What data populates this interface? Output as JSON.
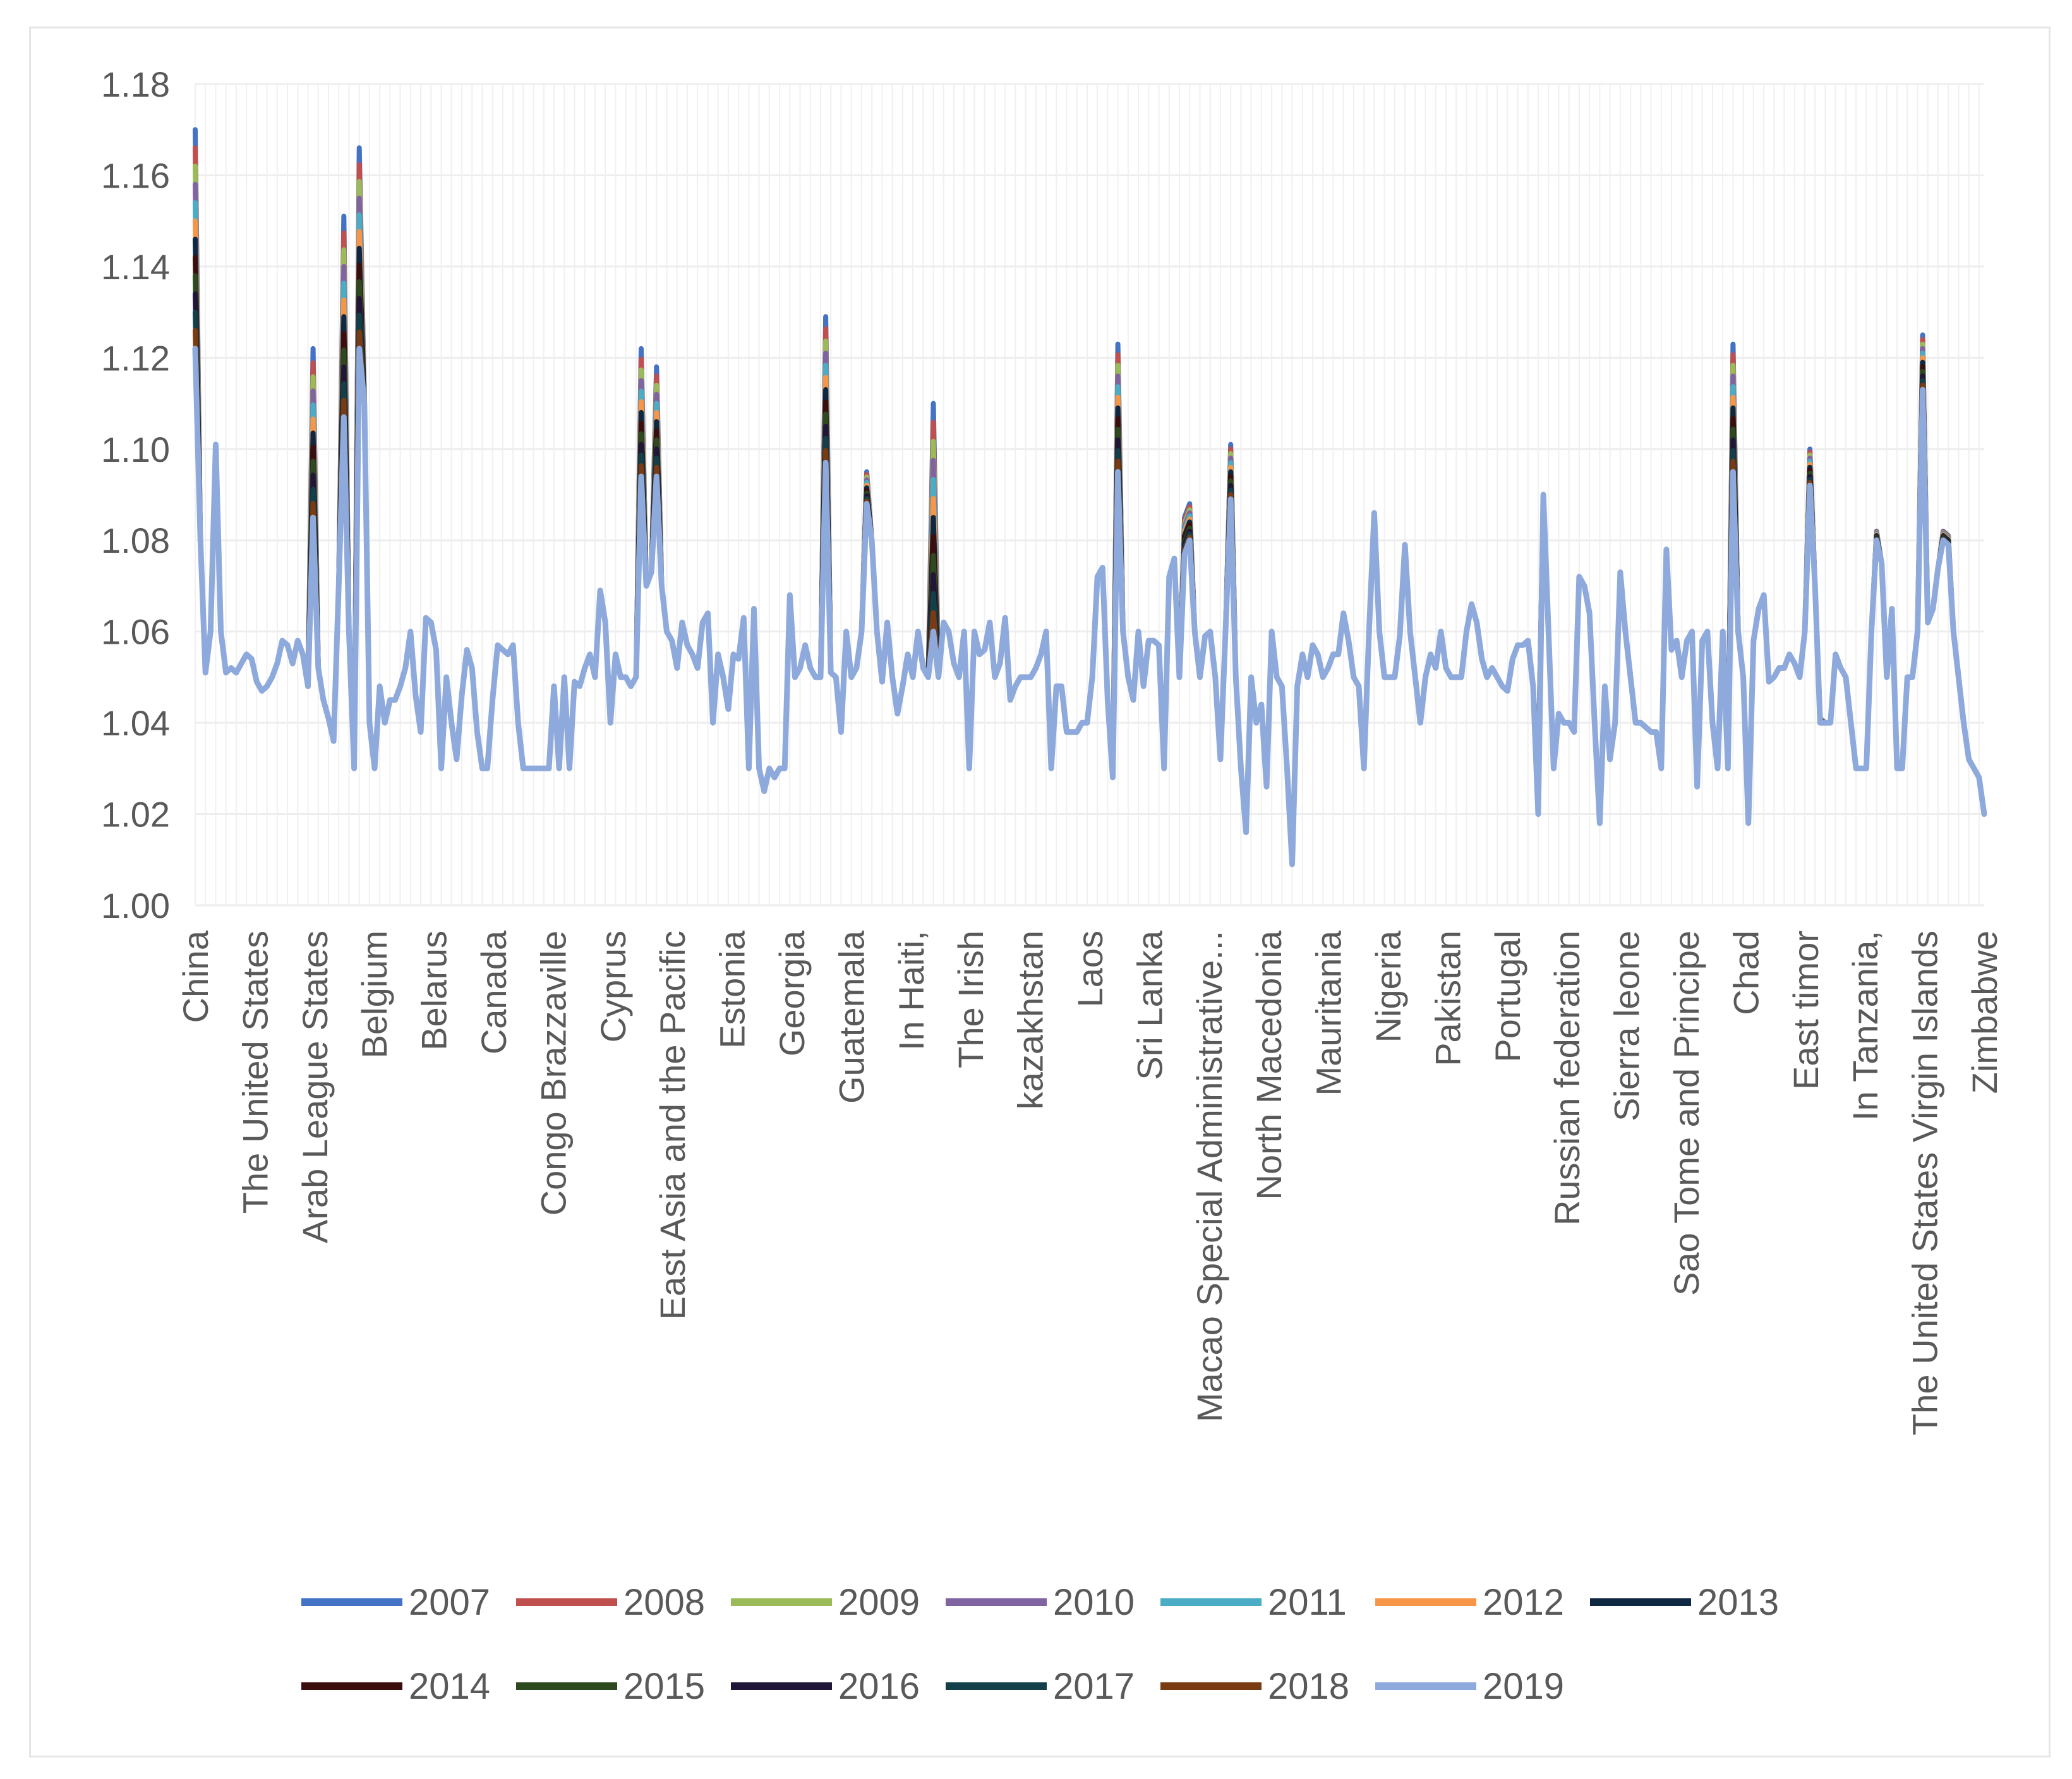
{
  "chart_data": {
    "type": "line",
    "title": "",
    "xlabel": "",
    "ylabel": "",
    "ylim": [
      1.0,
      1.18
    ],
    "yticks": [
      "1.00",
      "1.02",
      "1.04",
      "1.06",
      "1.08",
      "1.10",
      "1.12",
      "1.14",
      "1.16",
      "1.18"
    ],
    "grid": true,
    "legend_position": "bottom",
    "categories": [
      "China",
      "The United States",
      "Arab League States",
      "Belgium",
      "Belarus",
      "Canada",
      "Congo Brazzaville",
      "Cyprus",
      "East Asia and the Pacific",
      "Estonia",
      "Georgia",
      "Guatemala",
      "In Haiti,",
      "The Irish",
      "kazakhstan",
      "Laos",
      "Sri Lanka",
      "Macao Special Administrative...",
      "North Macedonia",
      "Mauritania",
      "Nigeria",
      "Pakistan",
      "Portugal",
      "Russian federation",
      "Sierra leone",
      "Sao Tome and Principe",
      "Chad",
      "East timor",
      "In Tanzania,",
      "The United States Virgin Islands",
      "Zimbabwe"
    ],
    "base_profile": [
      [
        0,
        1.122
      ],
      [
        1.5,
        1.06
      ],
      [
        2,
        1.051
      ],
      [
        3,
        1.06
      ],
      [
        4,
        1.101
      ],
      [
        5,
        1.06
      ],
      [
        6,
        1.051
      ],
      [
        7,
        1.052
      ],
      [
        8,
        1.051
      ],
      [
        9,
        1.053
      ],
      [
        10,
        1.055
      ],
      [
        11,
        1.054
      ],
      [
        12,
        1.049
      ],
      [
        13,
        1.047
      ],
      [
        14,
        1.048
      ],
      [
        15,
        1.05
      ],
      [
        16,
        1.053
      ],
      [
        17,
        1.058
      ],
      [
        18,
        1.057
      ],
      [
        19,
        1.053
      ],
      [
        20,
        1.058
      ],
      [
        21,
        1.055
      ],
      [
        22,
        1.048
      ],
      [
        23,
        1.085
      ],
      [
        24,
        1.052
      ],
      [
        25,
        1.045
      ],
      [
        26,
        1.041
      ],
      [
        27,
        1.036
      ],
      [
        28,
        1.07
      ],
      [
        29,
        1.107
      ],
      [
        30,
        1.06
      ],
      [
        31,
        1.03
      ],
      [
        32,
        1.122
      ],
      [
        33,
        1.11
      ],
      [
        34,
        1.04
      ],
      [
        35,
        1.03
      ],
      [
        36,
        1.048
      ],
      [
        37,
        1.04
      ],
      [
        38,
        1.045
      ],
      [
        39,
        1.045
      ],
      [
        40,
        1.048
      ],
      [
        41,
        1.052
      ],
      [
        42,
        1.06
      ],
      [
        43,
        1.046
      ],
      [
        44,
        1.038
      ],
      [
        45,
        1.063
      ],
      [
        46,
        1.062
      ],
      [
        47,
        1.056
      ],
      [
        48,
        1.03
      ],
      [
        49,
        1.05
      ],
      [
        50,
        1.04
      ],
      [
        51,
        1.032
      ],
      [
        52,
        1.046
      ],
      [
        53,
        1.056
      ],
      [
        54,
        1.052
      ],
      [
        55,
        1.038
      ],
      [
        56,
        1.03
      ],
      [
        57,
        1.03
      ],
      [
        58,
        1.045
      ],
      [
        59,
        1.057
      ],
      [
        60,
        1.056
      ],
      [
        61,
        1.055
      ],
      [
        62,
        1.057
      ],
      [
        63,
        1.04
      ],
      [
        64,
        1.03
      ],
      [
        65,
        1.03
      ],
      [
        66,
        1.03
      ],
      [
        67,
        1.03
      ],
      [
        68,
        1.03
      ],
      [
        69,
        1.03
      ],
      [
        70,
        1.048
      ],
      [
        71,
        1.03
      ],
      [
        72,
        1.05
      ],
      [
        73,
        1.03
      ],
      [
        74,
        1.049
      ],
      [
        75,
        1.048
      ],
      [
        76,
        1.052
      ],
      [
        77,
        1.055
      ],
      [
        78,
        1.05
      ],
      [
        79,
        1.069
      ],
      [
        80,
        1.062
      ],
      [
        81,
        1.04
      ],
      [
        82,
        1.055
      ],
      [
        83,
        1.05
      ],
      [
        84,
        1.05
      ],
      [
        85,
        1.048
      ],
      [
        86,
        1.05
      ],
      [
        87,
        1.094
      ],
      [
        88,
        1.07
      ],
      [
        89,
        1.073
      ],
      [
        90,
        1.094
      ],
      [
        91,
        1.07
      ],
      [
        92,
        1.06
      ],
      [
        93,
        1.058
      ],
      [
        94,
        1.052
      ],
      [
        95,
        1.062
      ],
      [
        96,
        1.057
      ],
      [
        97,
        1.055
      ],
      [
        98,
        1.052
      ],
      [
        99,
        1.062
      ],
      [
        100,
        1.064
      ],
      [
        101,
        1.04
      ],
      [
        102,
        1.055
      ],
      [
        103,
        1.05
      ],
      [
        104,
        1.043
      ],
      [
        105,
        1.055
      ],
      [
        106,
        1.054
      ],
      [
        107,
        1.063
      ],
      [
        108,
        1.03
      ],
      [
        109,
        1.065
      ],
      [
        110,
        1.03
      ],
      [
        111,
        1.025
      ],
      [
        112,
        1.03
      ],
      [
        113,
        1.028
      ],
      [
        114,
        1.03
      ],
      [
        115,
        1.03
      ],
      [
        116,
        1.068
      ],
      [
        117,
        1.05
      ],
      [
        118,
        1.052
      ],
      [
        119,
        1.057
      ],
      [
        120,
        1.052
      ],
      [
        121,
        1.05
      ],
      [
        122,
        1.05
      ],
      [
        123,
        1.097
      ],
      [
        124,
        1.051
      ],
      [
        125,
        1.05
      ],
      [
        126,
        1.038
      ],
      [
        127,
        1.06
      ],
      [
        128,
        1.05
      ],
      [
        129,
        1.052
      ],
      [
        130,
        1.06
      ],
      [
        131,
        1.088
      ],
      [
        132,
        1.08
      ],
      [
        133,
        1.06
      ],
      [
        134,
        1.049
      ],
      [
        135,
        1.062
      ],
      [
        136,
        1.05
      ],
      [
        137,
        1.042
      ],
      [
        138,
        1.048
      ],
      [
        139,
        1.055
      ],
      [
        140,
        1.05
      ],
      [
        141,
        1.06
      ],
      [
        142,
        1.052
      ],
      [
        143,
        1.05
      ],
      [
        144,
        1.06
      ],
      [
        145,
        1.05
      ],
      [
        146,
        1.062
      ],
      [
        147,
        1.06
      ],
      [
        148,
        1.053
      ],
      [
        149,
        1.05
      ],
      [
        150,
        1.06
      ],
      [
        151,
        1.03
      ],
      [
        152,
        1.06
      ],
      [
        153,
        1.055
      ],
      [
        154,
        1.056
      ],
      [
        155,
        1.062
      ],
      [
        156,
        1.05
      ],
      [
        157,
        1.053
      ],
      [
        158,
        1.063
      ],
      [
        159,
        1.045
      ],
      [
        160,
        1.048
      ],
      [
        161,
        1.05
      ],
      [
        162,
        1.05
      ],
      [
        163,
        1.05
      ],
      [
        164,
        1.052
      ],
      [
        165,
        1.055
      ],
      [
        166,
        1.06
      ],
      [
        167,
        1.03
      ],
      [
        168,
        1.048
      ],
      [
        169,
        1.048
      ],
      [
        170,
        1.038
      ],
      [
        171,
        1.038
      ],
      [
        172,
        1.038
      ],
      [
        173,
        1.04
      ],
      [
        174,
        1.04
      ],
      [
        175,
        1.05
      ],
      [
        176,
        1.072
      ],
      [
        177,
        1.074
      ],
      [
        178,
        1.045
      ],
      [
        179,
        1.028
      ],
      [
        180,
        1.095
      ],
      [
        181,
        1.06
      ],
      [
        182,
        1.05
      ],
      [
        183,
        1.045
      ],
      [
        184,
        1.06
      ],
      [
        185,
        1.048
      ],
      [
        186,
        1.058
      ],
      [
        187,
        1.058
      ],
      [
        188,
        1.057
      ],
      [
        189,
        1.03
      ],
      [
        190,
        1.072
      ],
      [
        191,
        1.076
      ],
      [
        192,
        1.05
      ],
      [
        193,
        1.077
      ],
      [
        194,
        1.08
      ],
      [
        195,
        1.06
      ],
      [
        196,
        1.05
      ],
      [
        197,
        1.059
      ],
      [
        198,
        1.06
      ],
      [
        199,
        1.05
      ],
      [
        200,
        1.032
      ],
      [
        201,
        1.06
      ],
      [
        202,
        1.089
      ],
      [
        203,
        1.05
      ],
      [
        204,
        1.03
      ],
      [
        205,
        1.016
      ],
      [
        206,
        1.05
      ],
      [
        207,
        1.04
      ],
      [
        208,
        1.044
      ],
      [
        209,
        1.026
      ],
      [
        210,
        1.06
      ],
      [
        211,
        1.05
      ],
      [
        212,
        1.048
      ],
      [
        213,
        1.03
      ],
      [
        214,
        1.009
      ],
      [
        215,
        1.048
      ],
      [
        216,
        1.055
      ],
      [
        217,
        1.05
      ],
      [
        218,
        1.057
      ],
      [
        219,
        1.055
      ],
      [
        220,
        1.05
      ],
      [
        221,
        1.052
      ],
      [
        222,
        1.055
      ],
      [
        223,
        1.055
      ],
      [
        224,
        1.064
      ],
      [
        225,
        1.058
      ],
      [
        226,
        1.05
      ],
      [
        227,
        1.048
      ],
      [
        228,
        1.03
      ],
      [
        229,
        1.06
      ],
      [
        230,
        1.086
      ],
      [
        231,
        1.06
      ],
      [
        232,
        1.05
      ],
      [
        233,
        1.05
      ],
      [
        234,
        1.05
      ],
      [
        235,
        1.059
      ],
      [
        236,
        1.079
      ],
      [
        237,
        1.06
      ],
      [
        238,
        1.05
      ],
      [
        239,
        1.04
      ],
      [
        240,
        1.05
      ],
      [
        241,
        1.055
      ],
      [
        242,
        1.052
      ],
      [
        243,
        1.06
      ],
      [
        244,
        1.052
      ],
      [
        245,
        1.05
      ],
      [
        246,
        1.05
      ],
      [
        247,
        1.05
      ],
      [
        248,
        1.06
      ],
      [
        249,
        1.066
      ],
      [
        250,
        1.062
      ],
      [
        251,
        1.054
      ],
      [
        252,
        1.05
      ],
      [
        253,
        1.052
      ],
      [
        254,
        1.05
      ],
      [
        255,
        1.048
      ],
      [
        256,
        1.047
      ],
      [
        257,
        1.054
      ],
      [
        258,
        1.057
      ],
      [
        259,
        1.057
      ],
      [
        260,
        1.058
      ],
      [
        261,
        1.048
      ],
      [
        262,
        1.02
      ],
      [
        263,
        1.09
      ],
      [
        264,
        1.06
      ],
      [
        265,
        1.03
      ],
      [
        266,
        1.042
      ],
      [
        267,
        1.04
      ],
      [
        268,
        1.04
      ],
      [
        269,
        1.038
      ],
      [
        270,
        1.072
      ],
      [
        271,
        1.07
      ],
      [
        272,
        1.064
      ],
      [
        273,
        1.04
      ],
      [
        274,
        1.018
      ],
      [
        275,
        1.048
      ],
      [
        276,
        1.032
      ],
      [
        277,
        1.04
      ],
      [
        278,
        1.073
      ],
      [
        279,
        1.06
      ],
      [
        280,
        1.05
      ],
      [
        281,
        1.04
      ],
      [
        282,
        1.04
      ],
      [
        283,
        1.039
      ],
      [
        284,
        1.038
      ],
      [
        285,
        1.038
      ],
      [
        286,
        1.03
      ],
      [
        287,
        1.078
      ],
      [
        288,
        1.056
      ],
      [
        289,
        1.058
      ],
      [
        290,
        1.05
      ],
      [
        291,
        1.058
      ],
      [
        292,
        1.06
      ],
      [
        293,
        1.026
      ],
      [
        294,
        1.058
      ],
      [
        295,
        1.06
      ],
      [
        296,
        1.04
      ],
      [
        297,
        1.03
      ],
      [
        298,
        1.06
      ],
      [
        299,
        1.03
      ],
      [
        300,
        1.095
      ],
      [
        301,
        1.06
      ],
      [
        302,
        1.05
      ],
      [
        303,
        1.018
      ],
      [
        304,
        1.058
      ],
      [
        305,
        1.065
      ],
      [
        306,
        1.068
      ],
      [
        307,
        1.049
      ],
      [
        308,
        1.05
      ],
      [
        309,
        1.052
      ],
      [
        310,
        1.052
      ],
      [
        311,
        1.055
      ],
      [
        312,
        1.053
      ],
      [
        313,
        1.05
      ],
      [
        314,
        1.06
      ],
      [
        315,
        1.092
      ],
      [
        316,
        1.07
      ],
      [
        317,
        1.04
      ],
      [
        318,
        1.04
      ],
      [
        319,
        1.04
      ],
      [
        320,
        1.055
      ],
      [
        321,
        1.052
      ],
      [
        322,
        1.05
      ],
      [
        323,
        1.04
      ],
      [
        324,
        1.03
      ],
      [
        325,
        1.03
      ],
      [
        326,
        1.03
      ],
      [
        327,
        1.06
      ],
      [
        328,
        1.08
      ],
      [
        329,
        1.075
      ],
      [
        330,
        1.05
      ],
      [
        331,
        1.065
      ],
      [
        332,
        1.03
      ],
      [
        333,
        1.03
      ],
      [
        334,
        1.05
      ],
      [
        335,
        1.05
      ],
      [
        336,
        1.06
      ],
      [
        337,
        1.113
      ],
      [
        338,
        1.062
      ],
      [
        339,
        1.065
      ],
      [
        340,
        1.074
      ],
      [
        341,
        1.08
      ],
      [
        342,
        1.079
      ],
      [
        343,
        1.06
      ],
      [
        344,
        1.05
      ],
      [
        345,
        1.04
      ],
      [
        346,
        1.032
      ],
      [
        347,
        1.03
      ],
      [
        348,
        1.028
      ],
      [
        349,
        1.02
      ]
    ],
    "spike_extras": [
      [
        0,
        0.048
      ],
      [
        23,
        0.037
      ],
      [
        29,
        0.044
      ],
      [
        32,
        0.044
      ],
      [
        87,
        0.028
      ],
      [
        90,
        0.024
      ],
      [
        123,
        0.032
      ],
      [
        131,
        0.007
      ],
      [
        144,
        0.05
      ],
      [
        180,
        0.028
      ],
      [
        193,
        0.008
      ],
      [
        194,
        0.008
      ],
      [
        202,
        0.012
      ],
      [
        262,
        0.01
      ],
      [
        328,
        0.002
      ],
      [
        317,
        0.001
      ],
      [
        300,
        0.028
      ],
      [
        315,
        0.008
      ],
      [
        337,
        0.012
      ],
      [
        341,
        0.002
      ],
      [
        342,
        0.002
      ],
      [
        358,
        0.0
      ]
    ],
    "series": [
      {
        "name": "2007",
        "color": "#4472C4"
      },
      {
        "name": "2008",
        "color": "#C0504D"
      },
      {
        "name": "2009",
        "color": "#9BBB59"
      },
      {
        "name": "2010",
        "color": "#8064A2"
      },
      {
        "name": "2011",
        "color": "#4BACC6"
      },
      {
        "name": "2012",
        "color": "#F79646"
      },
      {
        "name": "2013",
        "color": "#0E2841"
      },
      {
        "name": "2014",
        "color": "#3B0E0E"
      },
      {
        "name": "2015",
        "color": "#2D4A1E"
      },
      {
        "name": "2016",
        "color": "#201738"
      },
      {
        "name": "2017",
        "color": "#123F4A"
      },
      {
        "name": "2018",
        "color": "#7A3A12"
      },
      {
        "name": "2019",
        "color": "#8EA9DB"
      }
    ]
  }
}
